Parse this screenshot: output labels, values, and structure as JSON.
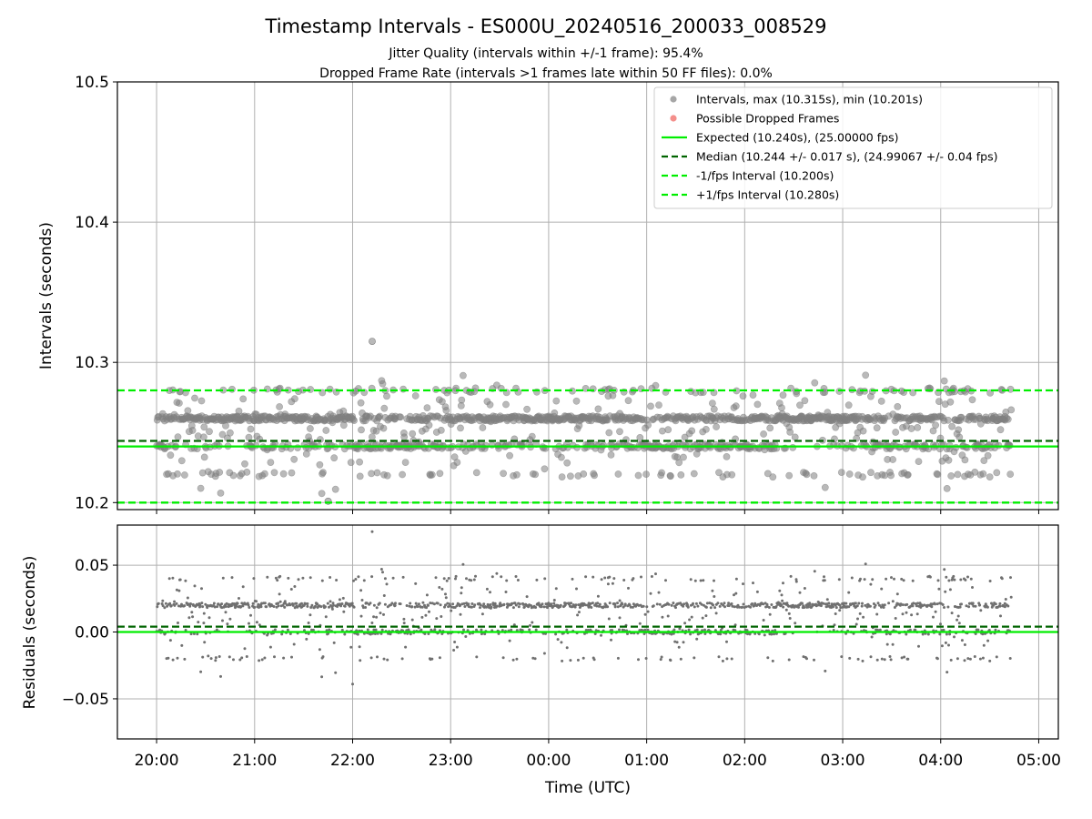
{
  "title": "Timestamp Intervals - ES000U_20240516_200033_008529",
  "subtitle_1": "Jitter Quality (intervals within +/-1 frame): 95.4%",
  "subtitle_2": "Dropped Frame Rate (intervals >1 frames late within 50 FF files): 0.0%",
  "chart_data": [
    {
      "type": "scatter",
      "panel": "intervals",
      "xlabel": "",
      "ylabel": "Intervals (seconds)",
      "ylim": [
        10.195,
        10.5
      ],
      "yticks": [
        10.2,
        10.3,
        10.4,
        10.5
      ],
      "ytick_labels": [
        "10.2",
        "10.3",
        "10.4",
        "10.5"
      ],
      "grid": true,
      "legend_position": "upper-right",
      "x_range_hours": [
        19.6,
        29.2
      ],
      "series": [
        {
          "name": "Intervals, max (10.315s), min (10.201s)",
          "kind": "points",
          "color": "#808080",
          "levels": [
            10.22,
            10.24,
            10.26,
            10.28
          ],
          "max": 10.315,
          "min": 10.201,
          "x_start": "20:00",
          "x_end": "04:43"
        },
        {
          "name": "Possible Dropped Frames",
          "kind": "points",
          "color": "#f0605a",
          "values": []
        },
        {
          "name": "Expected (10.240s), (25.00000 fps)",
          "kind": "hline",
          "value": 10.24,
          "color": "#00ee00",
          "style": "solid"
        },
        {
          "name": "Median (10.244 +/- 0.017 s), (24.99067 +/- 0.04 fps)",
          "kind": "hline",
          "value": 10.244,
          "color": "#006400",
          "style": "dashed"
        },
        {
          "name": "-1/fps Interval (10.200s)",
          "kind": "hline",
          "value": 10.2,
          "color": "#00ee00",
          "style": "dashed"
        },
        {
          "name": "+1/fps Interval (10.280s)",
          "kind": "hline",
          "value": 10.28,
          "color": "#00ee00",
          "style": "dashed"
        }
      ]
    },
    {
      "type": "scatter",
      "panel": "residuals",
      "xlabel": "Time (UTC)",
      "ylabel": "Residuals (seconds)",
      "ylim": [
        -0.08,
        0.08
      ],
      "yticks": [
        -0.05,
        0.0,
        0.05
      ],
      "ytick_labels": [
        "−0.05",
        "0.00",
        "0.05"
      ],
      "xticks_hours": [
        20,
        21,
        22,
        23,
        24,
        25,
        26,
        27,
        28,
        29
      ],
      "xtick_labels": [
        "20:00",
        "21:00",
        "22:00",
        "23:00",
        "00:00",
        "01:00",
        "02:00",
        "03:00",
        "04:00",
        "05:00"
      ],
      "grid": true,
      "series": [
        {
          "name": "Residuals",
          "kind": "points",
          "color": "#707070",
          "levels": [
            -0.02,
            0.0,
            0.02,
            0.04
          ],
          "max": 0.075,
          "min": -0.039
        },
        {
          "name": "Zero",
          "kind": "hline",
          "value": 0.0,
          "color": "#00ee00",
          "style": "solid"
        },
        {
          "name": "Median residual",
          "kind": "hline",
          "value": 0.004,
          "color": "#006400",
          "style": "dashed"
        }
      ]
    }
  ]
}
